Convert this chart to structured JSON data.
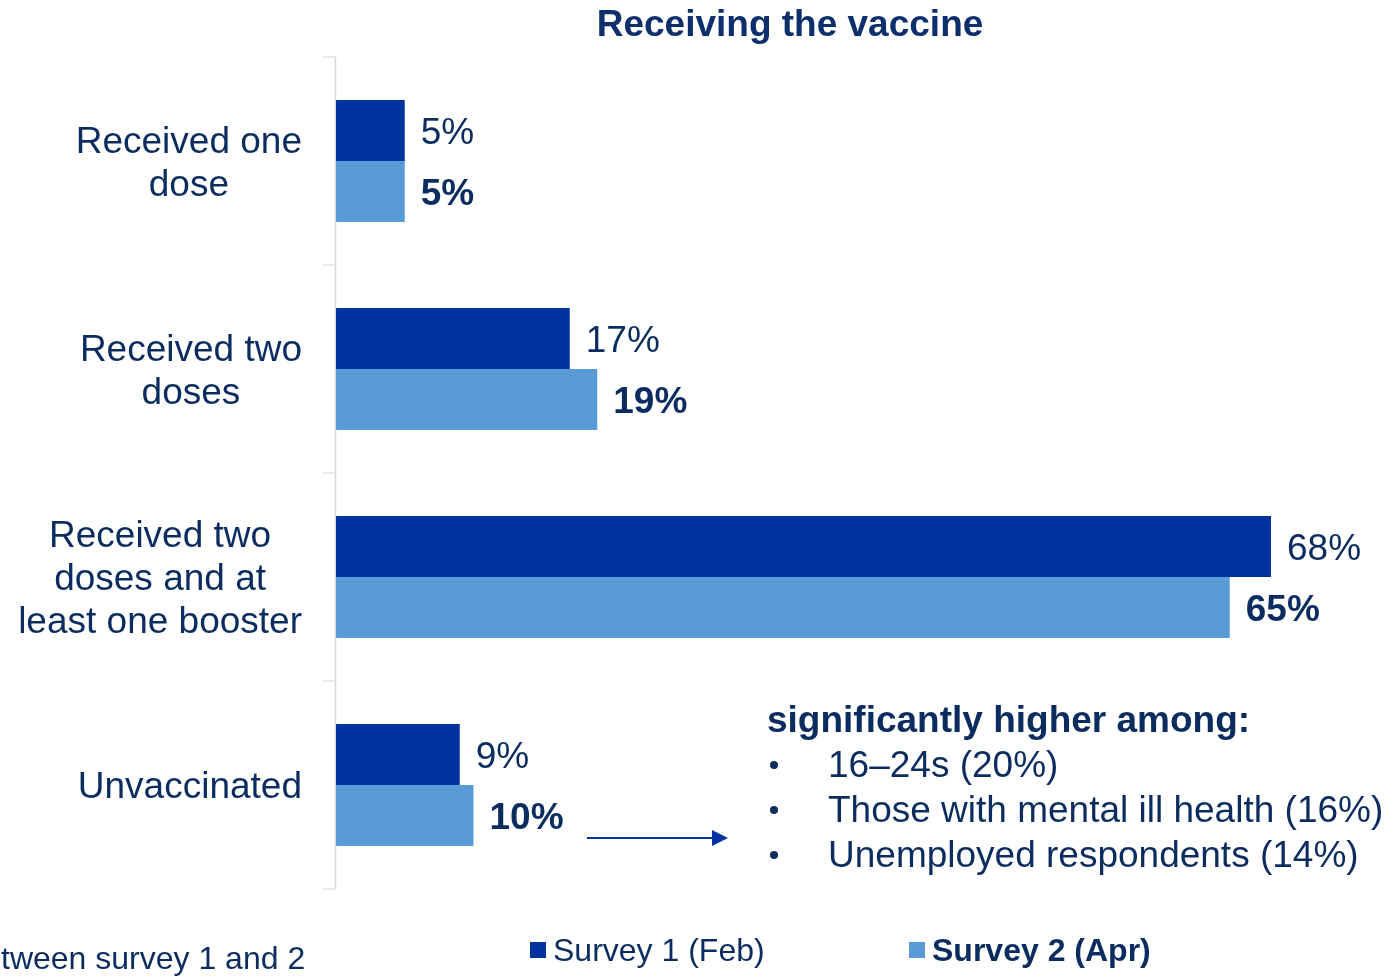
{
  "chart_data": {
    "type": "bar",
    "orientation": "horizontal",
    "title": "Receiving the vaccine",
    "categories": [
      "Received one dose",
      "Received two doses",
      "Received two doses and at least one booster",
      "Unvaccinated"
    ],
    "series": [
      {
        "name": "Survey 1 (Feb)",
        "color": "#0033a0",
        "values": [
          5,
          17,
          68,
          9
        ],
        "value_labels": [
          "5%",
          "17%",
          "68%",
          "9%"
        ]
      },
      {
        "name": "Survey 2 (Apr)",
        "color": "#5b9bd5",
        "values": [
          5,
          19,
          65,
          10
        ],
        "value_labels": [
          "5%",
          "19%",
          "65%",
          "10%"
        ]
      }
    ],
    "legend": "bottom",
    "tick_labels": "y",
    "annotations": [
      "significantly higher among:",
      "16–24s (20%)",
      "Those with mental ill health (16%)",
      "Unemployed respondents (14%)",
      "tween survey 1 and 2"
    ]
  }
}
